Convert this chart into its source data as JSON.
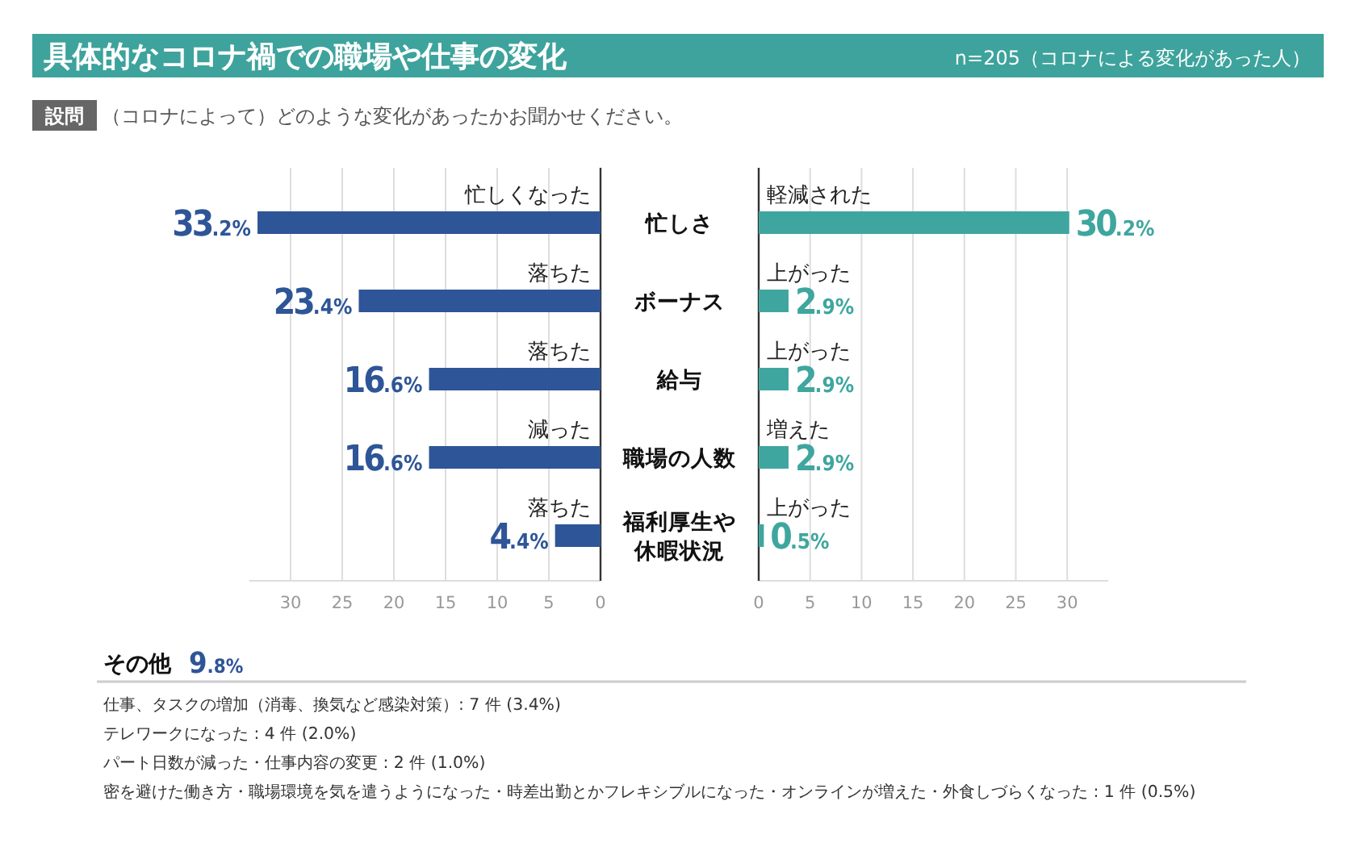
{
  "chart_data": [
    {
      "type": "bar",
      "orientation": "horizontal",
      "title": "具体的なコロナ禍での職場や仕事の変化",
      "categories": [
        "忙しさ",
        "ボーナス",
        "給与",
        "職場の人数",
        "福利厚生や休暇状況"
      ],
      "values": [
        33.2,
        23.4,
        16.6,
        16.6,
        4.4
      ],
      "color": "#2e5597",
      "value_labels": [
        "33.2%",
        "23.4%",
        "16.6%",
        "16.6%",
        "4.4%"
      ],
      "xlim": [
        34,
        0
      ],
      "xticks": [
        0,
        5,
        10,
        15,
        20,
        25,
        30
      ],
      "grid": "x",
      "annotations": [
        "設問",
        "（コロナによって）どのような変化があったかお聞かせください。",
        "その他",
        "9.8%",
        "仕事、タスクの増加（消毒、換気など感染対策）: 7 件 (3.4%)",
        "テレワークになった : 4 件 (2.0%)",
        "パート日数が減った・仕事内容の変更 : 2 件 (1.0%)",
        "密を避けた働き方・職場環境を気を遣うようになった・時差出勤とかフレキシブルになった・オンラインが増えた・外食しづらくなった : 1 件 (0.5%)",
        "忙しくなった",
        "落ちた",
        "落ちた",
        "減った",
        "落ちた"
      ]
    },
    {
      "type": "bar",
      "orientation": "horizontal",
      "tick_labels": "x",
      "subtitle": "n=205（コロナによる変化があった人）",
      "categories": [
        null,
        null,
        null,
        null,
        null
      ],
      "values": [
        30.2,
        2.9,
        2.9,
        2.9,
        0.5
      ],
      "color": "#3fa69f",
      "value_labels": [
        "30.2%",
        "2.9%",
        "2.9%",
        "2.9%",
        "0.5%"
      ],
      "xlim": [
        0,
        34
      ],
      "xticks": [
        0,
        5,
        10,
        15,
        20,
        25,
        30
      ],
      "grid": "x",
      "annotations": [
        "軽減された",
        "上がった",
        "上がった",
        "増えた",
        "上がった"
      ]
    }
  ]
}
